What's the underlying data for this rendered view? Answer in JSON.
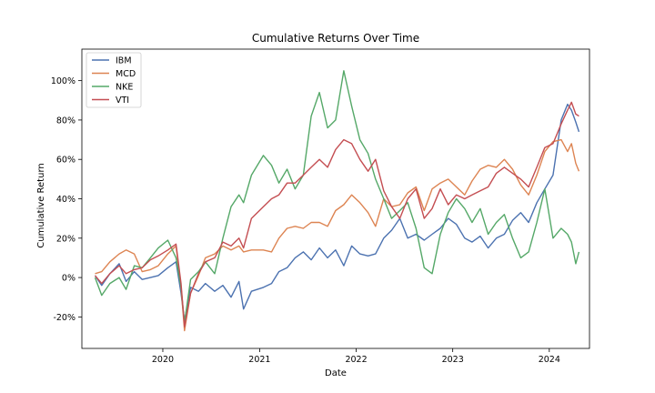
{
  "chart_data": {
    "type": "line",
    "title": "Cumulative Returns Over Time",
    "xlabel": "Date",
    "ylabel": "Cumulative Return",
    "x_range": [
      "2019-03-01",
      "2024-06-01"
    ],
    "x_ticks": [
      "2020",
      "2021",
      "2022",
      "2023",
      "2024"
    ],
    "ylim": [
      -0.36,
      1.16
    ],
    "y_ticks": [
      -0.2,
      0.0,
      0.2,
      0.4,
      0.6,
      0.8,
      1.0
    ],
    "y_tick_labels": [
      "-20%",
      "0%",
      "20%",
      "40%",
      "60%",
      "80%",
      "100%"
    ],
    "grid": false,
    "legend_position": "top-left",
    "series": [
      {
        "name": "IBM",
        "color": "#4c72b0",
        "points": [
          [
            "2019-04-20",
            0.01
          ],
          [
            "2019-05-15",
            -0.04
          ],
          [
            "2019-06-15",
            0.02
          ],
          [
            "2019-07-20",
            0.07
          ],
          [
            "2019-08-15",
            -0.02
          ],
          [
            "2019-09-15",
            0.03
          ],
          [
            "2019-10-15",
            -0.01
          ],
          [
            "2019-11-15",
            0.0
          ],
          [
            "2019-12-15",
            0.01
          ],
          [
            "2020-01-20",
            0.05
          ],
          [
            "2020-02-20",
            0.08
          ],
          [
            "2020-03-10",
            -0.08
          ],
          [
            "2020-03-23",
            -0.22
          ],
          [
            "2020-04-15",
            -0.05
          ],
          [
            "2020-05-15",
            -0.07
          ],
          [
            "2020-06-10",
            -0.03
          ],
          [
            "2020-07-15",
            -0.07
          ],
          [
            "2020-08-15",
            -0.04
          ],
          [
            "2020-09-15",
            -0.1
          ],
          [
            "2020-10-15",
            -0.02
          ],
          [
            "2020-11-01",
            -0.16
          ],
          [
            "2020-12-01",
            -0.07
          ],
          [
            "2021-01-15",
            -0.05
          ],
          [
            "2021-02-15",
            -0.03
          ],
          [
            "2021-03-15",
            0.03
          ],
          [
            "2021-04-15",
            0.05
          ],
          [
            "2021-05-15",
            0.1
          ],
          [
            "2021-06-15",
            0.13
          ],
          [
            "2021-07-15",
            0.09
          ],
          [
            "2021-08-15",
            0.15
          ],
          [
            "2021-09-15",
            0.1
          ],
          [
            "2021-10-15",
            0.14
          ],
          [
            "2021-11-15",
            0.06
          ],
          [
            "2021-12-15",
            0.16
          ],
          [
            "2022-01-15",
            0.12
          ],
          [
            "2022-02-15",
            0.11
          ],
          [
            "2022-03-15",
            0.12
          ],
          [
            "2022-04-15",
            0.2
          ],
          [
            "2022-05-15",
            0.24
          ],
          [
            "2022-06-15",
            0.3
          ],
          [
            "2022-07-15",
            0.2
          ],
          [
            "2022-08-15",
            0.22
          ],
          [
            "2022-09-15",
            0.19
          ],
          [
            "2022-10-15",
            0.22
          ],
          [
            "2022-11-15",
            0.25
          ],
          [
            "2022-12-15",
            0.3
          ],
          [
            "2023-01-15",
            0.27
          ],
          [
            "2023-02-15",
            0.2
          ],
          [
            "2023-03-15",
            0.18
          ],
          [
            "2023-04-15",
            0.21
          ],
          [
            "2023-05-15",
            0.15
          ],
          [
            "2023-06-15",
            0.2
          ],
          [
            "2023-07-15",
            0.22
          ],
          [
            "2023-08-15",
            0.29
          ],
          [
            "2023-09-15",
            0.33
          ],
          [
            "2023-10-15",
            0.28
          ],
          [
            "2023-11-15",
            0.38
          ],
          [
            "2023-12-15",
            0.45
          ],
          [
            "2024-01-15",
            0.52
          ],
          [
            "2024-02-15",
            0.8
          ],
          [
            "2024-03-10",
            0.88
          ],
          [
            "2024-03-25",
            0.85
          ],
          [
            "2024-04-10",
            0.79
          ],
          [
            "2024-04-22",
            0.74
          ]
        ]
      },
      {
        "name": "MCD",
        "color": "#dd8452",
        "points": [
          [
            "2019-04-20",
            0.02
          ],
          [
            "2019-05-15",
            0.03
          ],
          [
            "2019-06-15",
            0.08
          ],
          [
            "2019-07-20",
            0.12
          ],
          [
            "2019-08-15",
            0.14
          ],
          [
            "2019-09-15",
            0.12
          ],
          [
            "2019-10-15",
            0.03
          ],
          [
            "2019-11-15",
            0.04
          ],
          [
            "2019-12-15",
            0.06
          ],
          [
            "2020-01-20",
            0.12
          ],
          [
            "2020-02-20",
            0.16
          ],
          [
            "2020-03-10",
            -0.05
          ],
          [
            "2020-03-23",
            -0.27
          ],
          [
            "2020-04-15",
            -0.08
          ],
          [
            "2020-05-15",
            0.01
          ],
          [
            "2020-06-10",
            0.1
          ],
          [
            "2020-07-15",
            0.12
          ],
          [
            "2020-08-15",
            0.16
          ],
          [
            "2020-09-15",
            0.14
          ],
          [
            "2020-10-15",
            0.16
          ],
          [
            "2020-11-01",
            0.13
          ],
          [
            "2020-12-01",
            0.14
          ],
          [
            "2021-01-15",
            0.14
          ],
          [
            "2021-02-15",
            0.13
          ],
          [
            "2021-03-15",
            0.2
          ],
          [
            "2021-04-15",
            0.25
          ],
          [
            "2021-05-15",
            0.26
          ],
          [
            "2021-06-15",
            0.25
          ],
          [
            "2021-07-15",
            0.28
          ],
          [
            "2021-08-15",
            0.28
          ],
          [
            "2021-09-15",
            0.26
          ],
          [
            "2021-10-15",
            0.34
          ],
          [
            "2021-11-15",
            0.37
          ],
          [
            "2021-12-15",
            0.42
          ],
          [
            "2022-01-15",
            0.38
          ],
          [
            "2022-02-15",
            0.33
          ],
          [
            "2022-03-15",
            0.26
          ],
          [
            "2022-04-15",
            0.4
          ],
          [
            "2022-05-15",
            0.36
          ],
          [
            "2022-06-15",
            0.37
          ],
          [
            "2022-07-15",
            0.43
          ],
          [
            "2022-08-15",
            0.46
          ],
          [
            "2022-09-15",
            0.34
          ],
          [
            "2022-10-15",
            0.45
          ],
          [
            "2022-11-15",
            0.48
          ],
          [
            "2022-12-15",
            0.5
          ],
          [
            "2023-01-15",
            0.46
          ],
          [
            "2023-02-15",
            0.42
          ],
          [
            "2023-03-15",
            0.49
          ],
          [
            "2023-04-15",
            0.55
          ],
          [
            "2023-05-15",
            0.57
          ],
          [
            "2023-06-15",
            0.56
          ],
          [
            "2023-07-15",
            0.6
          ],
          [
            "2023-08-15",
            0.55
          ],
          [
            "2023-09-15",
            0.47
          ],
          [
            "2023-10-15",
            0.42
          ],
          [
            "2023-11-15",
            0.52
          ],
          [
            "2023-12-15",
            0.64
          ],
          [
            "2024-01-15",
            0.69
          ],
          [
            "2024-02-15",
            0.7
          ],
          [
            "2024-03-10",
            0.64
          ],
          [
            "2024-03-25",
            0.68
          ],
          [
            "2024-04-10",
            0.58
          ],
          [
            "2024-04-22",
            0.54
          ]
        ]
      },
      {
        "name": "NKE",
        "color": "#55a868",
        "points": [
          [
            "2019-04-20",
            0.0
          ],
          [
            "2019-05-15",
            -0.09
          ],
          [
            "2019-06-15",
            -0.03
          ],
          [
            "2019-07-20",
            0.0
          ],
          [
            "2019-08-15",
            -0.06
          ],
          [
            "2019-09-15",
            0.06
          ],
          [
            "2019-10-15",
            0.05
          ],
          [
            "2019-11-15",
            0.1
          ],
          [
            "2019-12-15",
            0.15
          ],
          [
            "2020-01-20",
            0.19
          ],
          [
            "2020-02-20",
            0.1
          ],
          [
            "2020-03-10",
            -0.05
          ],
          [
            "2020-03-23",
            -0.23
          ],
          [
            "2020-04-15",
            -0.01
          ],
          [
            "2020-05-15",
            0.03
          ],
          [
            "2020-06-10",
            0.08
          ],
          [
            "2020-07-15",
            0.02
          ],
          [
            "2020-08-15",
            0.2
          ],
          [
            "2020-09-15",
            0.36
          ],
          [
            "2020-10-15",
            0.42
          ],
          [
            "2020-11-01",
            0.38
          ],
          [
            "2020-12-01",
            0.52
          ],
          [
            "2021-01-15",
            0.62
          ],
          [
            "2021-02-15",
            0.57
          ],
          [
            "2021-03-15",
            0.48
          ],
          [
            "2021-04-15",
            0.55
          ],
          [
            "2021-05-15",
            0.45
          ],
          [
            "2021-06-15",
            0.52
          ],
          [
            "2021-07-15",
            0.82
          ],
          [
            "2021-08-15",
            0.94
          ],
          [
            "2021-09-15",
            0.76
          ],
          [
            "2021-10-15",
            0.8
          ],
          [
            "2021-11-15",
            1.05
          ],
          [
            "2021-12-15",
            0.87
          ],
          [
            "2022-01-15",
            0.7
          ],
          [
            "2022-02-15",
            0.63
          ],
          [
            "2022-03-15",
            0.5
          ],
          [
            "2022-04-15",
            0.4
          ],
          [
            "2022-05-15",
            0.3
          ],
          [
            "2022-06-15",
            0.34
          ],
          [
            "2022-07-15",
            0.38
          ],
          [
            "2022-08-15",
            0.25
          ],
          [
            "2022-09-15",
            0.05
          ],
          [
            "2022-10-15",
            0.02
          ],
          [
            "2022-11-15",
            0.22
          ],
          [
            "2022-12-15",
            0.33
          ],
          [
            "2023-01-15",
            0.4
          ],
          [
            "2023-02-15",
            0.35
          ],
          [
            "2023-03-15",
            0.28
          ],
          [
            "2023-04-15",
            0.35
          ],
          [
            "2023-05-15",
            0.22
          ],
          [
            "2023-06-15",
            0.28
          ],
          [
            "2023-07-15",
            0.32
          ],
          [
            "2023-08-15",
            0.2
          ],
          [
            "2023-09-15",
            0.1
          ],
          [
            "2023-10-15",
            0.13
          ],
          [
            "2023-11-15",
            0.28
          ],
          [
            "2023-12-15",
            0.45
          ],
          [
            "2024-01-15",
            0.2
          ],
          [
            "2024-02-15",
            0.25
          ],
          [
            "2024-03-10",
            0.22
          ],
          [
            "2024-03-25",
            0.18
          ],
          [
            "2024-04-10",
            0.07
          ],
          [
            "2024-04-22",
            0.13
          ]
        ]
      },
      {
        "name": "VTI",
        "color": "#c44e52",
        "points": [
          [
            "2019-04-20",
            0.01
          ],
          [
            "2019-05-15",
            -0.03
          ],
          [
            "2019-06-15",
            0.02
          ],
          [
            "2019-07-20",
            0.06
          ],
          [
            "2019-08-15",
            0.02
          ],
          [
            "2019-09-15",
            0.04
          ],
          [
            "2019-10-15",
            0.05
          ],
          [
            "2019-11-15",
            0.09
          ],
          [
            "2019-12-15",
            0.11
          ],
          [
            "2020-01-20",
            0.14
          ],
          [
            "2020-02-20",
            0.17
          ],
          [
            "2020-03-10",
            -0.03
          ],
          [
            "2020-03-23",
            -0.25
          ],
          [
            "2020-04-15",
            -0.08
          ],
          [
            "2020-05-15",
            0.02
          ],
          [
            "2020-06-10",
            0.08
          ],
          [
            "2020-07-15",
            0.1
          ],
          [
            "2020-08-15",
            0.18
          ],
          [
            "2020-09-15",
            0.16
          ],
          [
            "2020-10-15",
            0.2
          ],
          [
            "2020-11-01",
            0.15
          ],
          [
            "2020-12-01",
            0.3
          ],
          [
            "2021-01-15",
            0.36
          ],
          [
            "2021-02-15",
            0.4
          ],
          [
            "2021-03-15",
            0.42
          ],
          [
            "2021-04-15",
            0.48
          ],
          [
            "2021-05-15",
            0.48
          ],
          [
            "2021-06-15",
            0.52
          ],
          [
            "2021-07-15",
            0.56
          ],
          [
            "2021-08-15",
            0.6
          ],
          [
            "2021-09-15",
            0.56
          ],
          [
            "2021-10-15",
            0.65
          ],
          [
            "2021-11-15",
            0.7
          ],
          [
            "2021-12-15",
            0.68
          ],
          [
            "2022-01-15",
            0.6
          ],
          [
            "2022-02-15",
            0.54
          ],
          [
            "2022-03-15",
            0.6
          ],
          [
            "2022-04-15",
            0.44
          ],
          [
            "2022-05-15",
            0.36
          ],
          [
            "2022-06-15",
            0.3
          ],
          [
            "2022-07-15",
            0.4
          ],
          [
            "2022-08-15",
            0.45
          ],
          [
            "2022-09-15",
            0.3
          ],
          [
            "2022-10-15",
            0.35
          ],
          [
            "2022-11-15",
            0.45
          ],
          [
            "2022-12-15",
            0.37
          ],
          [
            "2023-01-15",
            0.42
          ],
          [
            "2023-02-15",
            0.4
          ],
          [
            "2023-03-15",
            0.42
          ],
          [
            "2023-04-15",
            0.44
          ],
          [
            "2023-05-15",
            0.46
          ],
          [
            "2023-06-15",
            0.53
          ],
          [
            "2023-07-15",
            0.56
          ],
          [
            "2023-08-15",
            0.53
          ],
          [
            "2023-09-15",
            0.5
          ],
          [
            "2023-10-15",
            0.46
          ],
          [
            "2023-11-15",
            0.56
          ],
          [
            "2023-12-15",
            0.66
          ],
          [
            "2024-01-15",
            0.68
          ],
          [
            "2024-02-15",
            0.78
          ],
          [
            "2024-03-10",
            0.85
          ],
          [
            "2024-03-25",
            0.89
          ],
          [
            "2024-04-10",
            0.83
          ],
          [
            "2024-04-22",
            0.82
          ]
        ]
      }
    ]
  }
}
